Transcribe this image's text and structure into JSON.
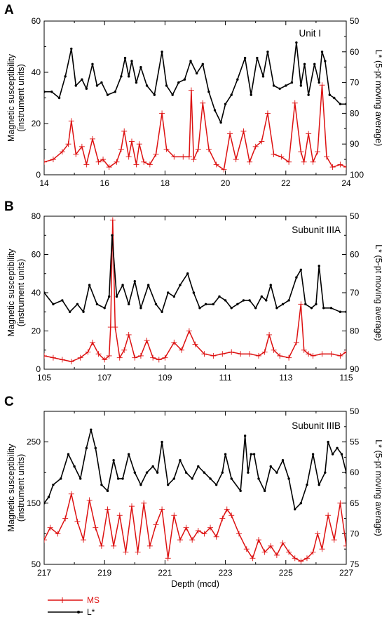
{
  "colors": {
    "ms": "#dd1111",
    "lstar": "#000000"
  },
  "xlabel": "Depth (mcd)",
  "legend": [
    {
      "key": "ms",
      "label": "MS"
    },
    {
      "key": "lstar",
      "label": "L*"
    }
  ],
  "chart_data": [
    {
      "type": "line",
      "panel": "A",
      "unit_label": "Unit I",
      "xlabel": "",
      "ylabel_left": "Magnetic susceptibility (instrument units)",
      "ylabel_right": "L* (5-pt moving average)",
      "xlim": [
        14,
        24
      ],
      "ylim_left": [
        0,
        60
      ],
      "ylim_right": [
        100,
        50
      ],
      "xticks": [
        14,
        16,
        18,
        20,
        22,
        24
      ],
      "yticks_left": [
        0,
        20,
        40,
        60
      ],
      "yticks_right": [
        50,
        60,
        70,
        80,
        90,
        100
      ],
      "grid": false,
      "series": [
        {
          "name": "MS",
          "axis": "left",
          "x": [
            14.0,
            14.3,
            14.6,
            14.8,
            14.9,
            15.05,
            15.25,
            15.4,
            15.6,
            15.8,
            15.95,
            16.15,
            16.4,
            16.55,
            16.65,
            16.8,
            16.9,
            17.05,
            17.15,
            17.3,
            17.5,
            17.7,
            17.9,
            18.05,
            18.3,
            18.6,
            18.8,
            18.87,
            18.95,
            19.1,
            19.25,
            19.45,
            19.7,
            19.95,
            20.15,
            20.35,
            20.6,
            20.8,
            21.0,
            21.2,
            21.4,
            21.6,
            21.85,
            22.1,
            22.3,
            22.5,
            22.6,
            22.75,
            22.9,
            23.05,
            23.2,
            23.35,
            23.55,
            23.8,
            24.0
          ],
          "y": [
            5,
            6,
            9,
            12,
            21,
            8,
            11,
            4,
            14,
            5,
            6,
            3,
            5,
            10,
            17,
            7,
            13,
            4,
            12,
            5,
            4,
            8,
            24,
            10,
            7,
            7,
            7,
            33,
            6,
            10,
            28,
            10,
            4,
            2,
            16,
            6,
            17,
            5,
            11,
            13,
            24,
            8,
            7,
            5,
            28,
            9,
            5,
            16,
            5,
            9,
            35,
            7,
            3,
            4,
            3
          ]
        },
        {
          "name": "L*",
          "axis": "right",
          "x": [
            14.0,
            14.25,
            14.5,
            14.7,
            14.9,
            15.05,
            15.25,
            15.4,
            15.6,
            15.75,
            15.9,
            16.1,
            16.35,
            16.55,
            16.68,
            16.8,
            16.9,
            17.05,
            17.2,
            17.4,
            17.65,
            17.9,
            18.05,
            18.25,
            18.45,
            18.65,
            18.85,
            19.05,
            19.25,
            19.45,
            19.65,
            19.85,
            20.0,
            20.2,
            20.4,
            20.65,
            20.85,
            21.05,
            21.25,
            21.4,
            21.6,
            21.8,
            22.0,
            22.2,
            22.35,
            22.5,
            22.62,
            22.75,
            22.95,
            23.1,
            23.2,
            23.3,
            23.45,
            23.6,
            23.8,
            24.0
          ],
          "y": [
            73,
            73,
            75,
            68,
            59,
            71,
            69,
            72,
            64,
            71,
            70,
            74,
            73,
            68,
            62,
            68,
            63,
            70,
            65,
            71,
            74,
            60,
            71,
            74,
            70,
            69,
            63,
            67,
            64,
            73,
            79,
            83,
            77,
            74,
            69,
            62,
            74,
            62,
            68,
            60,
            71,
            72,
            71,
            70,
            57,
            71,
            64,
            74,
            64,
            70,
            60,
            63,
            74,
            75,
            77,
            77
          ]
        }
      ]
    },
    {
      "type": "line",
      "panel": "B",
      "unit_label": "Subunit IIIA",
      "xlabel": "",
      "ylabel_left": "Magnetic susceptibility (instrument units)",
      "ylabel_right": "L* (5-pt moving average)",
      "xlim": [
        105,
        115
      ],
      "ylim_left": [
        0,
        80
      ],
      "ylim_right": [
        90,
        50
      ],
      "xticks": [
        105,
        107,
        109,
        111,
        113,
        115
      ],
      "yticks_left": [
        0,
        20,
        40,
        60,
        80
      ],
      "yticks_right": [
        50,
        60,
        70,
        80,
        90
      ],
      "grid": false,
      "series": [
        {
          "name": "MS",
          "axis": "left",
          "x": [
            105.0,
            105.3,
            105.6,
            105.9,
            106.2,
            106.45,
            106.6,
            106.8,
            107.0,
            107.15,
            107.2,
            107.27,
            107.35,
            107.5,
            107.65,
            107.8,
            108.0,
            108.2,
            108.4,
            108.6,
            108.8,
            109.0,
            109.3,
            109.55,
            109.8,
            110.0,
            110.3,
            110.6,
            110.9,
            111.2,
            111.5,
            111.8,
            112.1,
            112.3,
            112.45,
            112.6,
            112.8,
            113.1,
            113.35,
            113.5,
            113.6,
            113.75,
            113.9,
            114.2,
            114.5,
            114.8,
            115.0
          ],
          "y": [
            7,
            6,
            5,
            4,
            6,
            9,
            14,
            8,
            5,
            7,
            22,
            78,
            22,
            6,
            10,
            18,
            6,
            7,
            15,
            6,
            5,
            6,
            14,
            10,
            20,
            13,
            8,
            7,
            8,
            9,
            8,
            8,
            7,
            9,
            18,
            10,
            7,
            6,
            14,
            34,
            10,
            8,
            7,
            8,
            8,
            7,
            9
          ]
        },
        {
          "name": "L*",
          "axis": "right",
          "x": [
            105.0,
            105.3,
            105.6,
            105.85,
            106.1,
            106.3,
            106.5,
            106.75,
            107.0,
            107.15,
            107.25,
            107.4,
            107.6,
            107.8,
            108.0,
            108.2,
            108.45,
            108.7,
            108.9,
            109.1,
            109.3,
            109.5,
            109.75,
            109.95,
            110.15,
            110.35,
            110.6,
            110.8,
            111.0,
            111.2,
            111.4,
            111.6,
            111.8,
            112.0,
            112.2,
            112.35,
            112.5,
            112.7,
            112.9,
            113.1,
            113.35,
            113.5,
            113.65,
            113.85,
            114.0,
            114.1,
            114.25,
            114.5,
            114.8,
            115.0
          ],
          "y": [
            70,
            73,
            72,
            75,
            73,
            75,
            68,
            73,
            74,
            71,
            55,
            71,
            68,
            73,
            67,
            74,
            68,
            73,
            75,
            70,
            71,
            68,
            65,
            70,
            74,
            73,
            73,
            71,
            72,
            74,
            73,
            72,
            72,
            74,
            71,
            72,
            68,
            74,
            73,
            72,
            66,
            64,
            73,
            74,
            73,
            63,
            74,
            74,
            75,
            75
          ]
        }
      ]
    },
    {
      "type": "line",
      "panel": "C",
      "unit_label": "Subunit IIIB",
      "xlabel": "Depth (mcd)",
      "ylabel_left": "Magnetic susceptibility (instrument units)",
      "ylabel_right": "L* (5-pt moving average)",
      "xlim": [
        217,
        227
      ],
      "ylim_left": [
        50,
        300
      ],
      "ylim_right": [
        75,
        50
      ],
      "xticks": [
        217,
        219,
        221,
        223,
        225,
        227
      ],
      "yticks_left": [
        50,
        150,
        250
      ],
      "yticks_right": [
        50,
        55,
        60,
        65,
        70,
        75
      ],
      "grid": false,
      "series": [
        {
          "name": "MS",
          "axis": "left",
          "x": [
            217.0,
            217.2,
            217.45,
            217.7,
            217.9,
            218.1,
            218.3,
            218.5,
            218.7,
            218.9,
            219.1,
            219.3,
            219.5,
            219.7,
            219.9,
            220.1,
            220.3,
            220.5,
            220.7,
            220.9,
            221.1,
            221.3,
            221.5,
            221.7,
            221.9,
            222.1,
            222.3,
            222.5,
            222.7,
            222.9,
            223.05,
            223.2,
            223.45,
            223.7,
            223.9,
            224.1,
            224.3,
            224.5,
            224.7,
            224.9,
            225.1,
            225.3,
            225.5,
            225.7,
            225.9,
            226.05,
            226.2,
            226.4,
            226.6,
            226.8,
            227.0
          ],
          "y": [
            90,
            110,
            100,
            125,
            165,
            120,
            90,
            155,
            110,
            80,
            140,
            80,
            130,
            70,
            145,
            70,
            150,
            80,
            115,
            140,
            60,
            130,
            90,
            110,
            90,
            105,
            100,
            110,
            95,
            125,
            140,
            130,
            100,
            75,
            60,
            90,
            70,
            80,
            65,
            85,
            70,
            60,
            55,
            60,
            70,
            100,
            75,
            130,
            90,
            150,
            80
          ]
        },
        {
          "name": "L*",
          "axis": "right",
          "x": [
            217.0,
            217.15,
            217.3,
            217.55,
            217.8,
            218.0,
            218.2,
            218.4,
            218.55,
            218.7,
            218.9,
            219.1,
            219.3,
            219.45,
            219.6,
            219.8,
            220.0,
            220.2,
            220.4,
            220.6,
            220.75,
            220.9,
            221.1,
            221.3,
            221.5,
            221.7,
            221.9,
            222.1,
            222.3,
            222.5,
            222.7,
            222.9,
            223.0,
            223.2,
            223.5,
            223.65,
            223.75,
            223.85,
            223.95,
            224.1,
            224.3,
            224.5,
            224.7,
            224.9,
            225.1,
            225.3,
            225.5,
            225.7,
            225.9,
            226.1,
            226.3,
            226.4,
            226.55,
            226.7,
            226.85,
            227.0
          ],
          "y": [
            65,
            64,
            62,
            61,
            57,
            59,
            61,
            56,
            53,
            56,
            62,
            63,
            58,
            61,
            61,
            57,
            60,
            62,
            60,
            59,
            60,
            55,
            62,
            61,
            58,
            60,
            61,
            59,
            60,
            61,
            62,
            60,
            57,
            61,
            63,
            54,
            60,
            57,
            57,
            61,
            63,
            59,
            60,
            58,
            61,
            66,
            65,
            62,
            57,
            62,
            60,
            55,
            57,
            56,
            57,
            60
          ]
        }
      ]
    }
  ]
}
